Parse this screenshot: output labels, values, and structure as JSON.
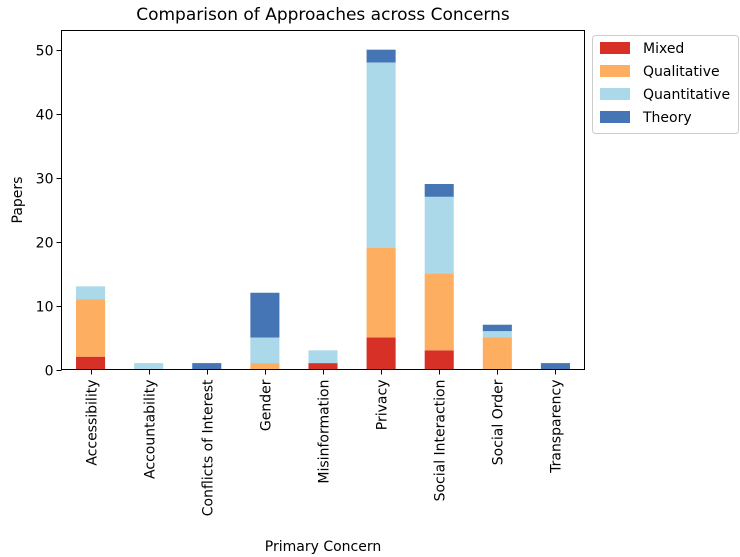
{
  "chart_data": {
    "type": "bar",
    "stacked": true,
    "title": "Comparison of Approaches across Concerns",
    "xlabel": "Primary Concern",
    "ylabel": "Papers",
    "ylim": [
      0,
      53
    ],
    "yticks": [
      0,
      10,
      20,
      30,
      40,
      50
    ],
    "grid": false,
    "legend_position": "outside-top-right",
    "categories": [
      "Accessibility",
      "Accountability",
      "Conflicts of Interest",
      "Gender",
      "Misinformation",
      "Privacy",
      "Social Interaction",
      "Social Order",
      "Transparency"
    ],
    "series": [
      {
        "name": "Mixed",
        "color": "#d73027",
        "values": [
          2,
          0,
          0,
          0,
          1,
          5,
          3,
          0,
          0
        ]
      },
      {
        "name": "Qualitative",
        "color": "#fdae61",
        "values": [
          9,
          0,
          0,
          1,
          0,
          14,
          12,
          5,
          0
        ]
      },
      {
        "name": "Quantitative",
        "color": "#abd9e9",
        "values": [
          2,
          1,
          0,
          4,
          2,
          29,
          12,
          1,
          0
        ]
      },
      {
        "name": "Theory",
        "color": "#4575b4",
        "values": [
          0,
          0,
          1,
          7,
          0,
          2,
          2,
          1,
          1
        ]
      }
    ]
  }
}
